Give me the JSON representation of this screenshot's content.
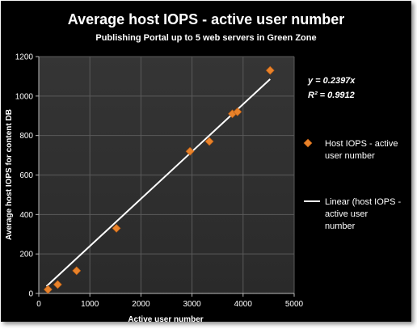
{
  "chart_data": {
    "type": "scatter",
    "title": "Average host IOPS - active user number",
    "subtitle": "Publishing Portal up to 5 web servers in Green Zone",
    "xlabel": "Active user number",
    "ylabel": "Average host IOPS for content DB",
    "xlim": [
      0,
      5000
    ],
    "ylim": [
      0,
      1200
    ],
    "x_ticks": [
      "0",
      "1000",
      "2000",
      "3000",
      "4000",
      "5000"
    ],
    "y_ticks": [
      "0",
      "200",
      "400",
      "600",
      "800",
      "1000",
      "1200"
    ],
    "grid": true,
    "legend_position": "right",
    "series": [
      {
        "name": "Host IOPS - active user number",
        "color": "#E8822A",
        "marker": "diamond",
        "x": [
          180,
          370,
          740,
          1520,
          2960,
          3340,
          3790,
          3890,
          4530
        ],
        "y": [
          20,
          45,
          115,
          330,
          720,
          770,
          910,
          920,
          1130
        ]
      }
    ],
    "trendline": {
      "name": "Linear (host IOPS - active user number)",
      "color": "#ffffff",
      "slope": 0.2397,
      "x_range": [
        150,
        4530
      ],
      "equation": "y = 0.2397x",
      "r_squared": "R² = 0.9912"
    }
  }
}
